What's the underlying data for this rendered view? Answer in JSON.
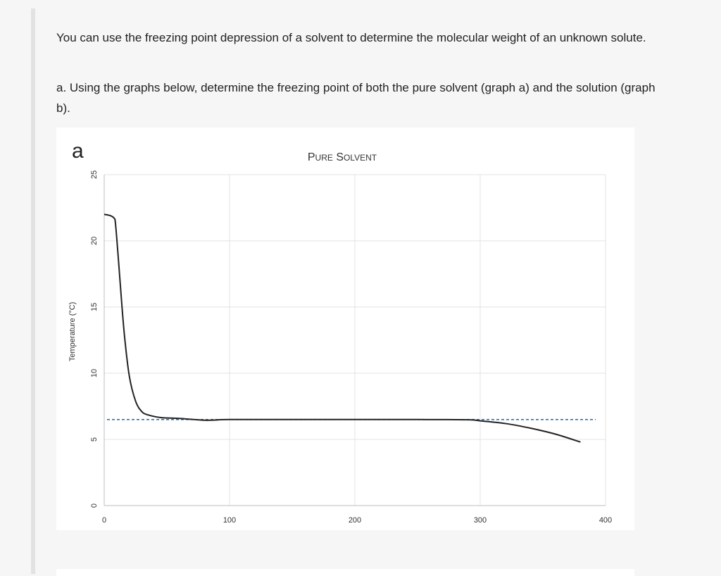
{
  "intro": "You can use the freezing point depression of a solvent to determine the molecular weight of an unknown solute.",
  "question_a": "a. Using the graphs below, determine the freezing point of both the pure solvent (graph a) and the solution (graph b).",
  "chart_data": {
    "type": "line",
    "panel_label": "a",
    "title": "Pure Solvent",
    "xlabel": "",
    "ylabel": "Temperature (°C)",
    "xlim": [
      0,
      400
    ],
    "ylim": [
      0,
      25
    ],
    "xticks": [
      0,
      100,
      200,
      300,
      400
    ],
    "yticks": [
      0,
      5,
      10,
      15,
      20,
      25
    ],
    "grid": true,
    "series": [
      {
        "name": "",
        "color": "#222222",
        "x": [
          0,
          5,
          8,
          9,
          11,
          13,
          16,
          20,
          25,
          30,
          35,
          45,
          60,
          80,
          90,
          100,
          150,
          200,
          250,
          290,
          300,
          320,
          340,
          360,
          380
        ],
        "y": [
          22.0,
          21.9,
          21.7,
          21.3,
          19.0,
          16.5,
          13.0,
          9.8,
          7.9,
          7.1,
          6.85,
          6.65,
          6.58,
          6.45,
          6.47,
          6.5,
          6.5,
          6.5,
          6.5,
          6.48,
          6.4,
          6.2,
          5.85,
          5.4,
          4.8
        ]
      }
    ],
    "reference_line": {
      "y": 6.5,
      "style": "dashed",
      "color": "#2e75b6"
    }
  }
}
